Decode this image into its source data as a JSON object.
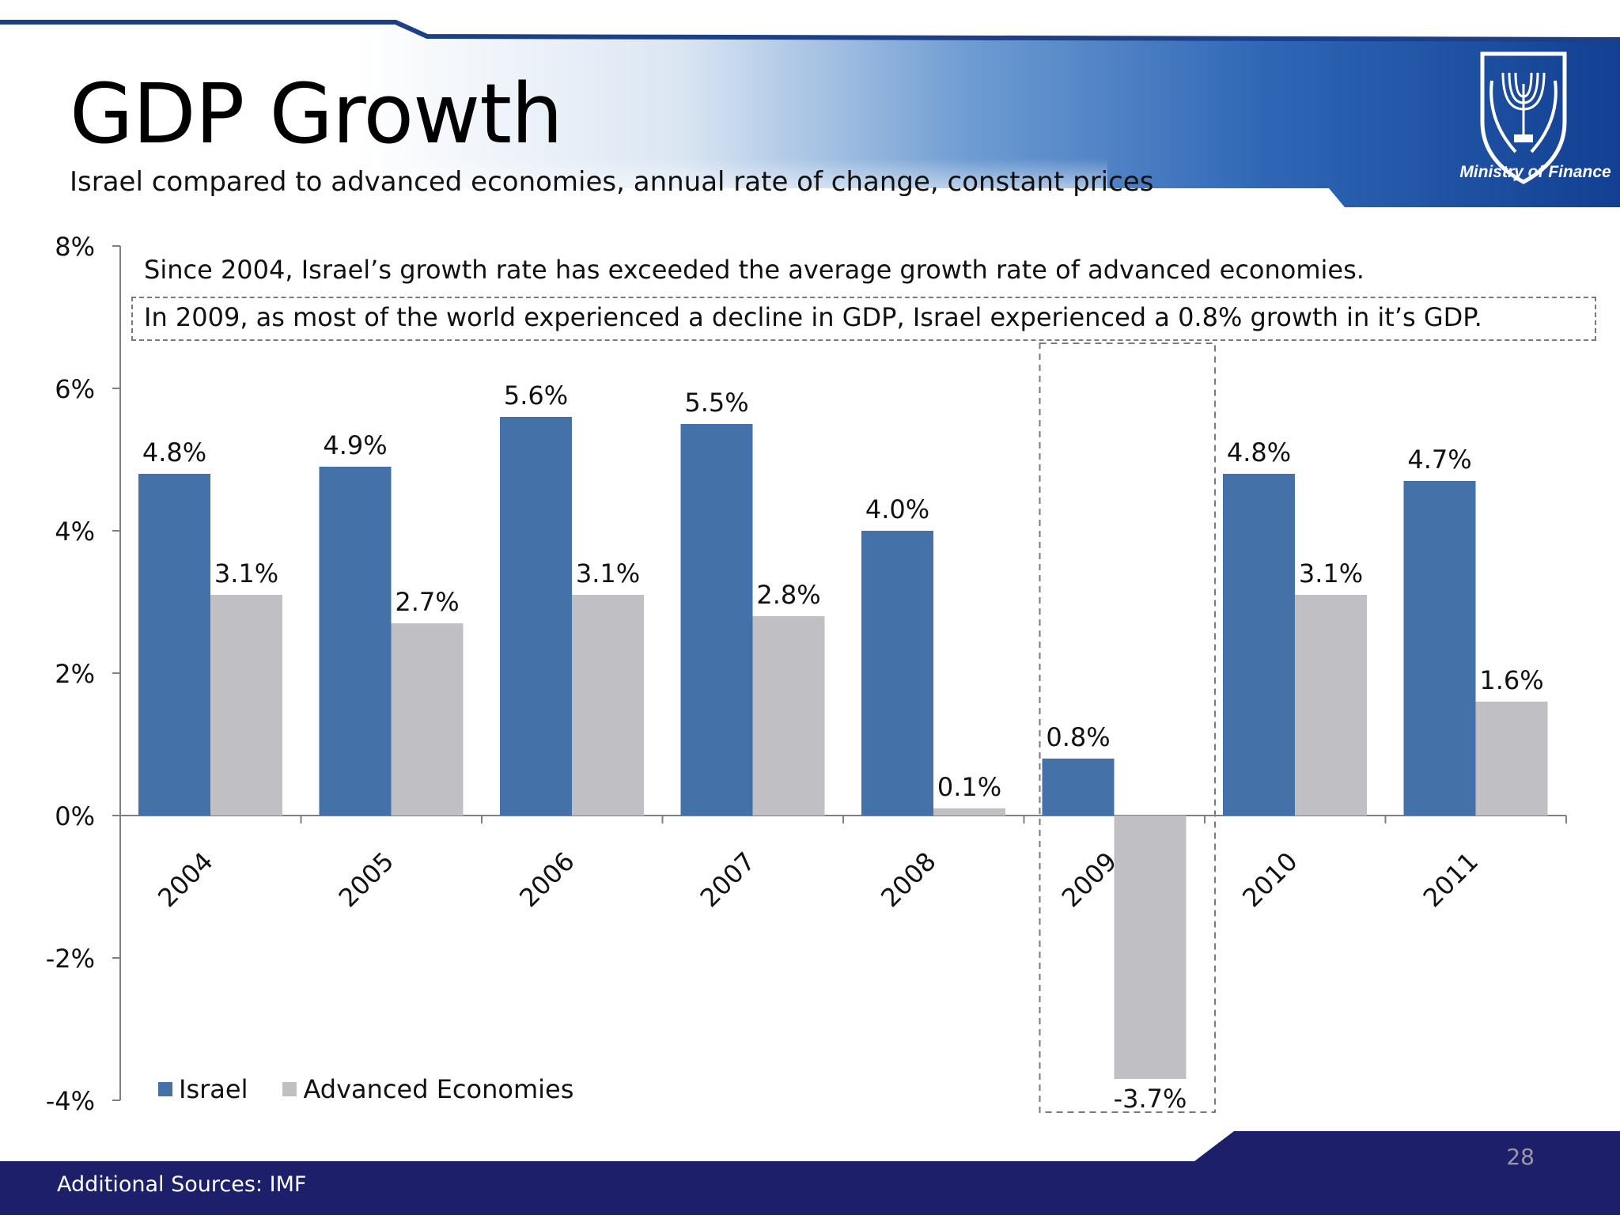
{
  "slide": {
    "title": "GDP Growth",
    "subtitle": "Israel compared to advanced economies, annual rate of change, constant prices",
    "logo_text": "Ministry of Finance",
    "page_number": "28",
    "sources": "Additional Sources: IMF",
    "colors": {
      "header_blue": "#1a4fa0",
      "footer_navy": "#1d1f6b"
    }
  },
  "annotations": {
    "note1": "Since 2004, Israel’s growth rate has exceeded the average growth rate of advanced economies.",
    "note2": "In 2009, as most of the world experienced a decline in GDP, Israel experienced a 0.8% growth in it’s GDP."
  },
  "chart_data": {
    "type": "bar",
    "categories": [
      "2004",
      "2005",
      "2006",
      "2007",
      "2008",
      "2009",
      "2010",
      "2011"
    ],
    "series": [
      {
        "name": "Israel",
        "color": "#4472a8",
        "values": [
          4.8,
          4.9,
          5.6,
          5.5,
          4.0,
          0.8,
          4.8,
          4.7
        ],
        "labels": [
          "4.8%",
          "4.9%",
          "5.6%",
          "5.5%",
          "4.0%",
          "0.8%",
          "4.8%",
          "4.7%"
        ]
      },
      {
        "name": "Advanced Economies",
        "color": "#c0bfc4",
        "values": [
          3.1,
          2.7,
          3.1,
          2.8,
          0.1,
          -3.7,
          3.1,
          1.6
        ],
        "labels": [
          "3.1%",
          "2.7%",
          "3.1%",
          "2.8%",
          "0.1%",
          "-3.7%",
          "3.1%",
          "1.6%"
        ]
      }
    ],
    "ylim": [
      -4,
      8
    ],
    "yticks": [
      8,
      6,
      4,
      2,
      0,
      -2,
      -4
    ],
    "ytick_labels": [
      "8%",
      "6%",
      "4%",
      "2%",
      "0%",
      "-2%",
      "-4%"
    ],
    "highlighted_category": "2009",
    "grid": false,
    "legend_position": "bottom-left"
  }
}
